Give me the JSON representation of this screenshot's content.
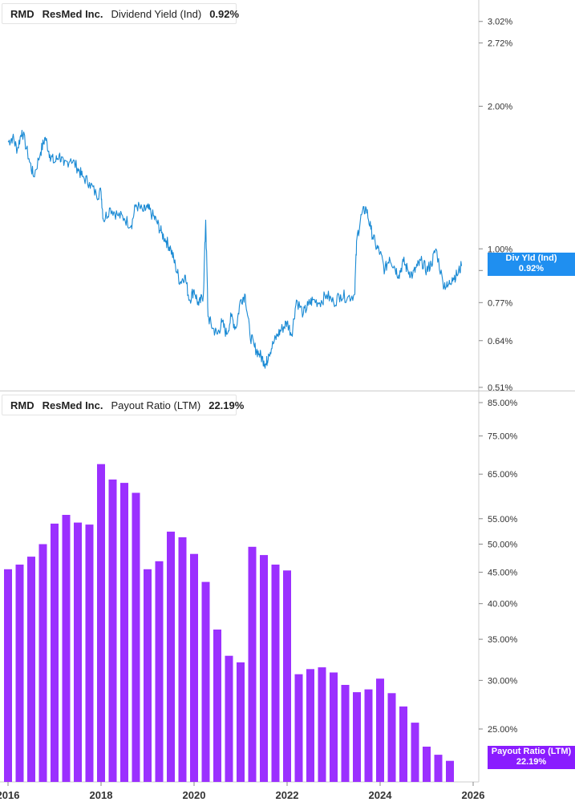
{
  "colors": {
    "yield_line": "#1a8ad4",
    "payout_bar": "#9b30ff",
    "yield_tag_bg": "#1f8ff0",
    "payout_tag_bg": "#8a1cff",
    "grid_divider": "#cccccc",
    "axis_text": "#333333"
  },
  "top_legend": {
    "ticker": "RMD",
    "company": "ResMed Inc.",
    "metric": "Dividend Yield (Ind)",
    "value": "0.92%"
  },
  "bottom_legend": {
    "ticker": "RMD",
    "company": "ResMed Inc.",
    "metric": "Payout Ratio (LTM)",
    "value": "22.19%"
  },
  "yield_tag": {
    "label": "Div Yld (Ind)",
    "value": "0.92%"
  },
  "payout_tag": {
    "label": "Payout Ratio (LTM)",
    "value": "22.19%"
  },
  "chart_data": [
    {
      "type": "line",
      "series": [
        {
          "name": "Dividend Yield (Ind)",
          "x": [
            2016.0,
            2016.1,
            2016.2,
            2016.3,
            2016.45,
            2016.55,
            2016.7,
            2016.8,
            2016.9,
            2017.0,
            2017.1,
            2017.2,
            2017.35,
            2017.5,
            2017.6,
            2017.75,
            2017.9,
            2018.0,
            2018.05,
            2018.2,
            2018.35,
            2018.5,
            2018.65,
            2018.75,
            2018.9,
            2019.0,
            2019.1,
            2019.2,
            2019.3,
            2019.4,
            2019.5,
            2019.6,
            2019.7,
            2019.8,
            2019.9,
            2020.0,
            2020.1,
            2020.2,
            2020.25,
            2020.3,
            2020.4,
            2020.5,
            2020.6,
            2020.7,
            2020.8,
            2020.9,
            2021.0,
            2021.1,
            2021.2,
            2021.3,
            2021.4,
            2021.5,
            2021.55,
            2021.6,
            2021.7,
            2021.8,
            2021.9,
            2022.0,
            2022.1,
            2022.2,
            2022.35,
            2022.45,
            2022.55,
            2022.7,
            2022.85,
            2023.0,
            2023.15,
            2023.3,
            2023.45,
            2023.5,
            2023.6,
            2023.7,
            2023.8,
            2023.9,
            2024.0,
            2024.1,
            2024.2,
            2024.3,
            2024.4,
            2024.5,
            2024.6,
            2024.7,
            2024.8,
            2024.9,
            2025.0,
            2025.1,
            2025.2,
            2025.35,
            2025.45,
            2025.55,
            2025.65,
            2025.75
          ],
          "values": [
            1.68,
            1.72,
            1.62,
            1.78,
            1.55,
            1.42,
            1.6,
            1.72,
            1.58,
            1.52,
            1.58,
            1.5,
            1.55,
            1.48,
            1.42,
            1.38,
            1.3,
            1.32,
            1.15,
            1.22,
            1.18,
            1.16,
            1.12,
            1.24,
            1.2,
            1.22,
            1.18,
            1.14,
            1.08,
            1.04,
            1.0,
            0.92,
            0.85,
            0.88,
            0.78,
            0.82,
            0.76,
            0.8,
            1.15,
            0.72,
            0.68,
            0.66,
            0.7,
            0.66,
            0.72,
            0.68,
            0.78,
            0.8,
            0.66,
            0.62,
            0.6,
            0.58,
            0.57,
            0.6,
            0.63,
            0.66,
            0.68,
            0.7,
            0.66,
            0.78,
            0.73,
            0.76,
            0.78,
            0.77,
            0.8,
            0.77,
            0.8,
            0.79,
            0.8,
            1.05,
            1.18,
            1.22,
            1.1,
            1.02,
            0.98,
            0.9,
            0.96,
            0.92,
            0.88,
            0.94,
            0.9,
            0.88,
            0.92,
            0.94,
            0.9,
            0.93,
            1.0,
            0.85,
            0.83,
            0.87,
            0.88,
            0.92
          ]
        }
      ],
      "yscale": "log",
      "ylim": [
        0.51,
        3.3
      ],
      "yticks": [
        "3.02%",
        "2.72%",
        "2.00%",
        "1.00%",
        "0.90%",
        "0.77%",
        "0.64%",
        "0.51%"
      ],
      "yticks_values": [
        3.02,
        2.72,
        2.0,
        1.0,
        0.9,
        0.77,
        0.64,
        0.51
      ],
      "legend_position": "top-left"
    },
    {
      "type": "bar",
      "series": [
        {
          "name": "Payout Ratio (LTM)",
          "x": [
            2016.0,
            2016.25,
            2016.5,
            2016.75,
            2017.0,
            2017.25,
            2017.5,
            2017.75,
            2018.0,
            2018.25,
            2018.5,
            2018.75,
            2019.0,
            2019.25,
            2019.5,
            2019.75,
            2020.0,
            2020.25,
            2020.5,
            2020.75,
            2021.0,
            2021.25,
            2021.5,
            2021.75,
            2022.0,
            2022.25,
            2022.5,
            2022.75,
            2023.0,
            2023.25,
            2023.5,
            2023.75,
            2024.0,
            2024.25,
            2024.5,
            2024.75,
            2025.0,
            2025.25,
            2025.5
          ],
          "values": [
            45.5,
            46.3,
            47.7,
            50.0,
            54.0,
            55.8,
            54.2,
            53.8,
            67.5,
            63.7,
            62.9,
            60.6,
            45.5,
            46.9,
            52.4,
            51.3,
            48.2,
            43.4,
            36.3,
            32.9,
            32.1,
            49.5,
            48.0,
            46.3,
            45.3,
            30.7,
            31.3,
            31.5,
            30.9,
            29.5,
            28.7,
            29.0,
            30.2,
            28.6,
            27.2,
            25.6,
            23.4,
            22.7,
            22.19
          ]
        }
      ],
      "yscale": "log",
      "ylim": [
        20.5,
        85.0
      ],
      "yticks": [
        "85.00%",
        "75.00%",
        "65.00%",
        "55.00%",
        "50.00%",
        "45.00%",
        "40.00%",
        "35.00%",
        "30.00%",
        "25.00%"
      ],
      "yticks_values": [
        85,
        75,
        65,
        55,
        50,
        45,
        40,
        35,
        30,
        25
      ],
      "xlim": [
        2016.0,
        2026.0
      ],
      "xticks": [
        "2016",
        "2018",
        "2020",
        "2022",
        "2024",
        "2026"
      ],
      "xticks_values": [
        2016,
        2018,
        2020,
        2022,
        2024,
        2026
      ],
      "legend_position": "top-left"
    }
  ]
}
